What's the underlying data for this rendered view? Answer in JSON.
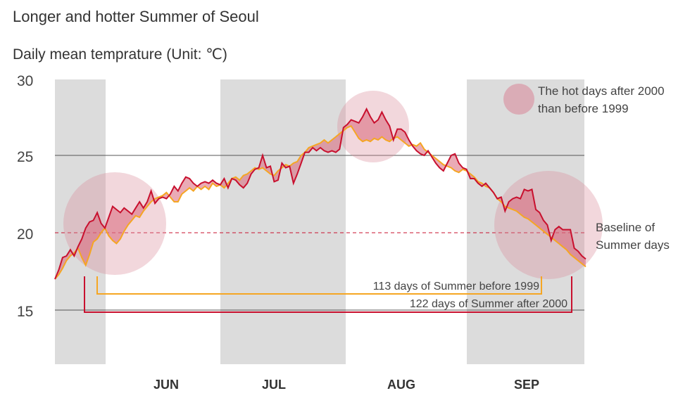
{
  "chart_data": {
    "type": "line",
    "title": "Longer and hotter Summer of Seoul",
    "subtitle": "Daily mean temprature (Unit: ℃)",
    "y_ticks": [
      "30",
      "25",
      "20",
      "15"
    ],
    "ylim": [
      12.5,
      30
    ],
    "month_labels": [
      "JUN",
      "JUL",
      "AUG",
      "SEP"
    ],
    "legend": {
      "hot_days": "The hot days after 2000 than before 1999"
    },
    "baseline_label": "Baseline of Summer days",
    "baseline_value": 20,
    "bracket_before": {
      "label": "113 days of Summer before 1999",
      "days": 113
    },
    "bracket_after": {
      "label": "122 days of Summer after 2000",
      "days": 122
    },
    "colors": {
      "after_2000": "#c8102e",
      "before_1999": "#f5a623",
      "fill": "#d9667a",
      "circle": "#d98c9c",
      "band": "#dcdcdc",
      "baseline": "#c8102e",
      "grid": "#555555"
    },
    "series": [
      {
        "name": "after 2000",
        "values": [
          17.0,
          17.6,
          18.4,
          18.5,
          18.9,
          18.5,
          19.1,
          19.6,
          20.3,
          20.7,
          20.8,
          21.3,
          20.6,
          20.3,
          21.0,
          21.7,
          21.5,
          21.3,
          21.6,
          21.4,
          21.2,
          21.6,
          22.0,
          21.6,
          22.0,
          22.7,
          21.9,
          22.2,
          22.3,
          22.2,
          22.5,
          23.0,
          22.7,
          23.2,
          23.6,
          23.5,
          23.2,
          23.0,
          23.2,
          23.3,
          23.2,
          23.4,
          23.2,
          23.1,
          23.5,
          22.9,
          23.5,
          23.4,
          23.1,
          22.9,
          23.2,
          23.8,
          24.1,
          24.2,
          25.0,
          24.2,
          24.3,
          23.3,
          23.4,
          24.5,
          24.2,
          24.3,
          23.2,
          23.8,
          24.5,
          25.2,
          25.2,
          25.5,
          25.3,
          25.5,
          25.3,
          25.2,
          25.3,
          25.2,
          25.4,
          26.8,
          27.0,
          27.3,
          27.2,
          27.1,
          27.5,
          28.0,
          27.5,
          27.1,
          27.3,
          27.8,
          27.3,
          26.9,
          26.0,
          26.7,
          26.7,
          26.5,
          26.0,
          25.6,
          25.3,
          25.1,
          25.0,
          25.3,
          24.9,
          24.5,
          24.2,
          24.0,
          24.5,
          25.0,
          25.1,
          24.5,
          24.2,
          24.1,
          23.5,
          23.5,
          23.2,
          23.0,
          23.2,
          22.9,
          22.6,
          22.2,
          22.3,
          21.4,
          22.0,
          22.2,
          22.3,
          22.2,
          22.8,
          22.7,
          22.8,
          21.5,
          21.3,
          20.8,
          20.5,
          19.5,
          20.2,
          20.4,
          20.2,
          20.2,
          20.2,
          19.0,
          18.8,
          18.5,
          18.3
        ]
      },
      {
        "name": "before 1999",
        "values": [
          17.0,
          17.3,
          17.7,
          18.2,
          18.5,
          18.7,
          19.0,
          18.4,
          17.9,
          18.6,
          19.4,
          19.6,
          20.0,
          20.3,
          19.8,
          19.5,
          19.3,
          19.6,
          20.1,
          20.5,
          20.8,
          21.1,
          21.0,
          21.4,
          21.7,
          22.0,
          22.2,
          22.3,
          22.4,
          22.6,
          22.3,
          22.0,
          22.0,
          22.5,
          22.7,
          22.9,
          22.7,
          23.0,
          22.8,
          23.0,
          22.8,
          23.2,
          23.0,
          23.1,
          22.9,
          23.2,
          23.5,
          23.6,
          23.4,
          23.7,
          23.8,
          24.0,
          24.2,
          24.1,
          24.2,
          24.0,
          23.8,
          23.7,
          24.0,
          24.2,
          24.4,
          24.3,
          24.5,
          24.6,
          25.0,
          25.2,
          25.5,
          25.6,
          25.7,
          25.8,
          26.0,
          25.8,
          26.0,
          26.2,
          26.4,
          26.6,
          26.8,
          26.9,
          26.5,
          26.1,
          25.9,
          26.0,
          25.9,
          26.1,
          26.0,
          26.2,
          26.0,
          25.9,
          26.1,
          26.2,
          26.0,
          25.8,
          25.6,
          25.7,
          25.6,
          25.8,
          25.4,
          25.2,
          25.0,
          24.8,
          24.6,
          24.4,
          24.3,
          24.2,
          24.0,
          23.9,
          24.1,
          24.0,
          23.8,
          23.6,
          23.3,
          23.2,
          23.0,
          22.9,
          22.6,
          22.2,
          22.0,
          21.7,
          21.6,
          21.5,
          21.4,
          21.2,
          21.0,
          20.9,
          20.7,
          20.5,
          20.3,
          20.1,
          19.9,
          19.7,
          19.5,
          19.3,
          19.1,
          18.9,
          18.6,
          18.4,
          18.2,
          18.0,
          17.8
        ]
      }
    ]
  }
}
